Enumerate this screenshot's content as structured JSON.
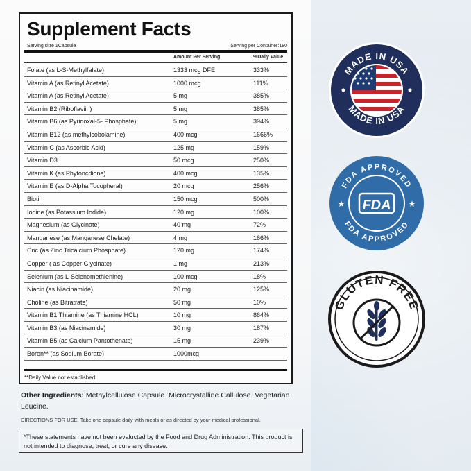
{
  "facts": {
    "title": "Supplement Facts",
    "serving_size": "Serving sitre 1Capsule",
    "serving_per_container": "Serving per Container:180",
    "col_amount": "Amount Per Serving",
    "col_dv": "%Daily Value",
    "rows": [
      {
        "name": "Folate (as L-S-Methylfalate)",
        "amount": "1333 mcg DFE",
        "dv": "333%"
      },
      {
        "name": "Vitamin A (as Retinyl Acetate)",
        "amount": "1000 mcg",
        "dv": "111%"
      },
      {
        "name": "Vitamin A (as Retinyl Acetate)",
        "amount": "5 mg",
        "dv": "385%"
      },
      {
        "name": "Vitamin B2 (Riboflaviin)",
        "amount": "5 mg",
        "dv": "385%"
      },
      {
        "name": "Vitamin B6 (as Pyridoxal-5- Phosphate)",
        "amount": "5 mg",
        "dv": "394%"
      },
      {
        "name": "Vitamin B12 (as methylcobolamine)",
        "amount": "400 mcg",
        "dv": "1666%"
      },
      {
        "name": "Vitamin C (as Ascorbic Acid)",
        "amount": "125 mg",
        "dv": "159%"
      },
      {
        "name": "Vitamin D3",
        "amount": "50 mcg",
        "dv": "250%"
      },
      {
        "name": "Vitamin K (as Phytoncdione)",
        "amount": "400 mcg",
        "dv": "135%"
      },
      {
        "name": "Vitamin E (as D-Alpha Tocopheral)",
        "amount": "20 mcg",
        "dv": "256%"
      },
      {
        "name": "Biotin",
        "amount": "150 mcg",
        "dv": "500%"
      },
      {
        "name": "Iodine (as Potassium Iodide)",
        "amount": "120 mg",
        "dv": "100%"
      },
      {
        "name": "Magnesium (as Glycinate)",
        "amount": "40 mg",
        "dv": "72%"
      },
      {
        "name": "Manganese (as Manganese Chelate)",
        "amount": "4 mg",
        "dv": "166%"
      },
      {
        "name": "Cnc (as Zinc Tricalcium Phosphate)",
        "amount": "120 mg",
        "dv": "174%"
      },
      {
        "name": "Copper ( as Copper Glycinate)",
        "amount": "1 mg",
        "dv": "213%"
      },
      {
        "name": "Selenium (as L-Selenomethienine)",
        "amount": "100 mcg",
        "dv": "18%"
      },
      {
        "name": "Niacin (as Niacinamide)",
        "amount": "20 mg",
        "dv": "125%"
      },
      {
        "name": "Choline (as Bitratrate)",
        "amount": "50 mg",
        "dv": "10%"
      },
      {
        "name": "Vitamin B1 Thiamine (as Thiamine HCL)",
        "amount": "10 mg",
        "dv": "864%"
      },
      {
        "name": "Vitamin B3 (as Niacinamide)",
        "amount": "30 mg",
        "dv": "187%"
      },
      {
        "name": "Vitamin B5 (as Calcium Pantothenate)",
        "amount": "15 mg",
        "dv": "239%"
      },
      {
        "name": "Boron** (as Sodium Borate)",
        "amount": "1000mcg",
        "dv": ""
      }
    ],
    "footnote": "**Daily Value not established"
  },
  "other_ingredients": {
    "label": "Other Ingredients:",
    "text": " Methylcellulose Capsule. Microcrystalline Callulose. Vegetarian Leucine."
  },
  "directions": {
    "label": "DIRECTIONS FOR USE.",
    "text": " Take one capsule daily with meals or as directed by your medical professional."
  },
  "disclaimer": "*These statements have not been evalucted by the Food and Drug Administration. This product is not intended to diagnose, treat, or cure any disease.",
  "badges": {
    "made_in_usa_top": "MADE IN USA",
    "made_in_usa_bottom": "MADE IN USA",
    "fda_top": "FDA APPROVED",
    "fda_bottom": "FDA APPROVED",
    "fda_center": "FDA",
    "gluten_free": "GLUTEN FREE"
  },
  "colors": {
    "badge_navy": "#1f2e5a",
    "flag_red": "#c8242b",
    "fda_blue": "#2f6ca8",
    "wheat_navy": "#1f2f5c"
  }
}
